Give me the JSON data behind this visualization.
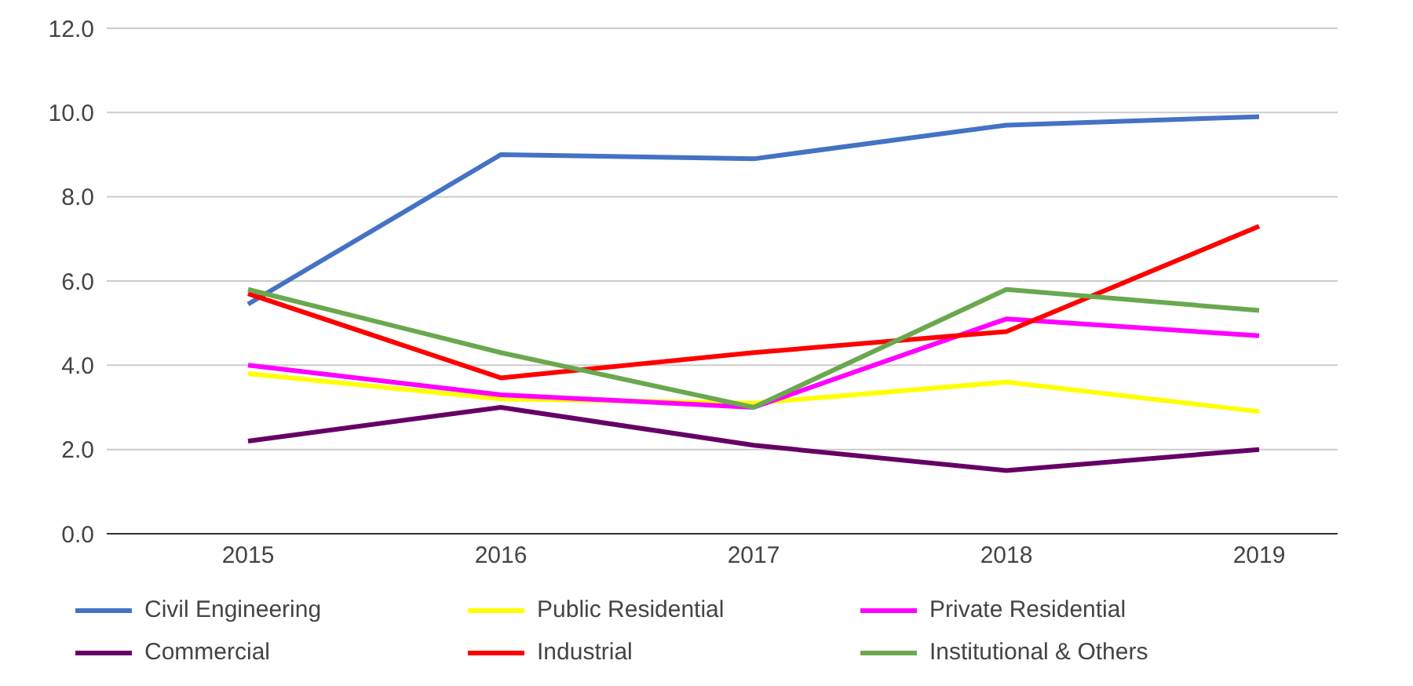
{
  "chart_data": {
    "type": "line",
    "categories": [
      "2015",
      "2016",
      "2017",
      "2018",
      "2019"
    ],
    "series": [
      {
        "name": "Civil Engineering",
        "color": "#4472c4",
        "values": [
          5.45,
          9.0,
          8.9,
          9.7,
          9.9
        ]
      },
      {
        "name": "Public Residential",
        "color": "#ffff00",
        "values": [
          3.8,
          3.2,
          3.1,
          3.6,
          2.9
        ]
      },
      {
        "name": "Private Residential",
        "color": "#ff00ff",
        "values": [
          4.0,
          3.3,
          3.0,
          5.1,
          4.7
        ]
      },
      {
        "name": "Commercial",
        "color": "#660066",
        "values": [
          2.2,
          3.0,
          2.1,
          1.5,
          2.0
        ]
      },
      {
        "name": "Industrial",
        "color": "#ff0000",
        "values": [
          5.7,
          3.7,
          4.3,
          4.8,
          7.3
        ]
      },
      {
        "name": "Institutional & Others",
        "color": "#6aa84f",
        "values": [
          5.8,
          4.3,
          3.0,
          5.8,
          5.3
        ]
      }
    ],
    "ylim": [
      0,
      12
    ],
    "yticks": [
      {
        "value": 0,
        "label": "0.0"
      },
      {
        "value": 2,
        "label": "2.0"
      },
      {
        "value": 4,
        "label": "4.0"
      },
      {
        "value": 6,
        "label": "6.0"
      },
      {
        "value": 8,
        "label": "8.0"
      },
      {
        "value": 10,
        "label": "10.0"
      },
      {
        "value": 12,
        "label": "12.0"
      }
    ],
    "grid": "y",
    "legend": "bottom",
    "marker": "none",
    "line_style": "solid"
  }
}
